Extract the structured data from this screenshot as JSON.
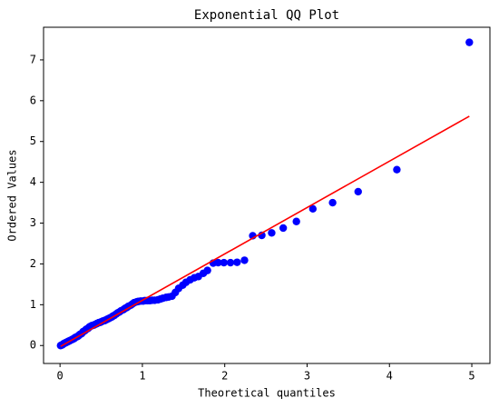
{
  "chart_data": {
    "type": "scatter",
    "title": "Exponential QQ Plot",
    "x_label": "Theoretical quantiles",
    "y_label": "Ordered Values",
    "series": [
      {
        "color": "#0000ff",
        "x": [
          0.007,
          0.02,
          0.03,
          0.04,
          0.05,
          0.06,
          0.07,
          0.08,
          0.09,
          0.1,
          0.11,
          0.12,
          0.14,
          0.15,
          0.16,
          0.17,
          0.18,
          0.19,
          0.21,
          0.22,
          0.23,
          0.24,
          0.26,
          0.27,
          0.28,
          0.3,
          0.31,
          0.32,
          0.34,
          0.35,
          0.36,
          0.38,
          0.39,
          0.41,
          0.42,
          0.44,
          0.45,
          0.47,
          0.49,
          0.5,
          0.52,
          0.54,
          0.55,
          0.57,
          0.59,
          0.61,
          0.63,
          0.64,
          0.66,
          0.68,
          0.7,
          0.72,
          0.74,
          0.77,
          0.79,
          0.81,
          0.83,
          0.86,
          0.88,
          0.9,
          0.93,
          0.95,
          0.98,
          1.01,
          1.03,
          1.06,
          1.09,
          1.12,
          1.15,
          1.19,
          1.22,
          1.25,
          1.29,
          1.32,
          1.36,
          1.4,
          1.44,
          1.49,
          1.53,
          1.58,
          1.63,
          1.68,
          1.74,
          1.79,
          1.86,
          1.92,
          1.99,
          2.07,
          2.15,
          2.24,
          2.34,
          2.45,
          2.57,
          2.71,
          2.87,
          3.07,
          3.31,
          3.62,
          4.09,
          4.97
        ],
        "values": [
          0.0,
          0.01,
          0.02,
          0.04,
          0.05,
          0.06,
          0.07,
          0.08,
          0.09,
          0.1,
          0.11,
          0.12,
          0.14,
          0.15,
          0.16,
          0.17,
          0.19,
          0.2,
          0.22,
          0.23,
          0.25,
          0.27,
          0.29,
          0.31,
          0.34,
          0.36,
          0.38,
          0.4,
          0.42,
          0.44,
          0.46,
          0.48,
          0.49,
          0.5,
          0.51,
          0.53,
          0.54,
          0.56,
          0.57,
          0.58,
          0.6,
          0.61,
          0.62,
          0.64,
          0.66,
          0.68,
          0.7,
          0.72,
          0.74,
          0.77,
          0.8,
          0.82,
          0.85,
          0.88,
          0.91,
          0.93,
          0.96,
          0.99,
          1.02,
          1.05,
          1.07,
          1.08,
          1.09,
          1.09,
          1.1,
          1.1,
          1.1,
          1.11,
          1.11,
          1.12,
          1.14,
          1.16,
          1.18,
          1.19,
          1.21,
          1.3,
          1.4,
          1.48,
          1.55,
          1.61,
          1.66,
          1.69,
          1.77,
          1.84,
          2.02,
          2.03,
          2.03,
          2.03,
          2.04,
          2.09,
          2.69,
          2.7,
          2.76,
          2.88,
          3.04,
          3.35,
          3.5,
          3.77,
          4.31,
          7.43
        ]
      }
    ],
    "fit_line": {
      "color": "#ff0000",
      "x": [
        0.007,
        4.97
      ],
      "values": [
        -0.02,
        5.62
      ]
    },
    "xlim": [
      -0.2,
      5.22
    ],
    "ylim": [
      -0.44,
      7.8
    ],
    "xticks": [
      0,
      1,
      2,
      3,
      4,
      5
    ],
    "yticks": [
      0,
      1,
      2,
      3,
      4,
      5,
      6,
      7
    ]
  }
}
